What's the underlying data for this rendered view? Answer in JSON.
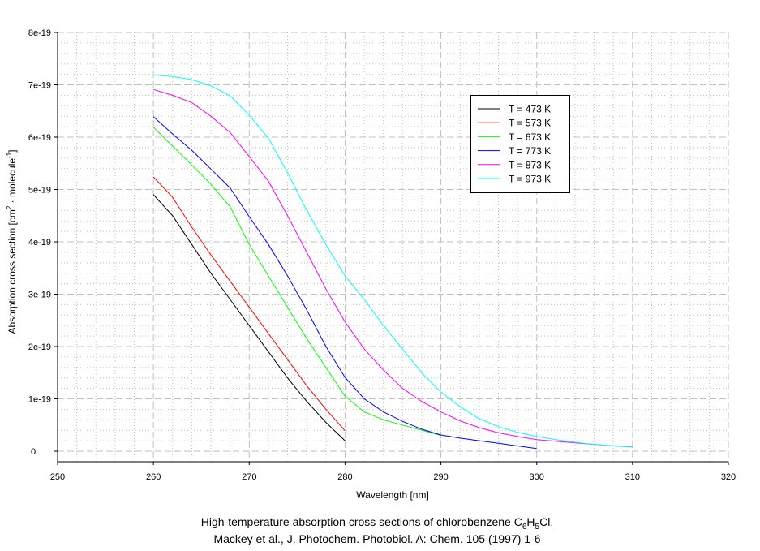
{
  "chart_data": {
    "type": "line",
    "title_line1": [
      "High-temperature absorption cross sections of chlorobenzene C",
      "6",
      "H",
      "5",
      "Cl,"
    ],
    "title_line2": "Mackey et al., J. Photochem. Photobiol. A: Chem. 105 (1997) 1-6",
    "xlabel": "Wavelength [nm]",
    "ylabel": [
      "Absorption cross section  [cm",
      "2",
      " · molecule",
      "-1",
      "]"
    ],
    "xlim": [
      250,
      320
    ],
    "ylim": [
      0,
      8e-19
    ],
    "xticks": [
      "250",
      "260",
      "270",
      "280",
      "290",
      "300",
      "310",
      "320"
    ],
    "yticks": [
      "0",
      "1e-19",
      "2e-19",
      "3e-19",
      "4e-19",
      "5e-19",
      "6e-19",
      "7e-19",
      "8e-19"
    ],
    "grid": true,
    "legend_position": "top-right",
    "y_unit_multiplier": 1e-19,
    "series": [
      {
        "name": "T = 473 K",
        "color": "#000000",
        "x": [
          260,
          262,
          264,
          266,
          268,
          270,
          272,
          274,
          276,
          278,
          280
        ],
        "y": [
          4.9,
          4.5,
          3.95,
          3.4,
          2.9,
          2.4,
          1.9,
          1.4,
          0.95,
          0.55,
          0.2
        ]
      },
      {
        "name": "T = 573 K",
        "color": "#ff0000",
        "x": [
          260,
          262,
          264,
          266,
          268,
          270,
          272,
          274,
          276,
          278,
          280
        ],
        "y": [
          5.24,
          4.85,
          4.28,
          3.75,
          3.25,
          2.75,
          2.25,
          1.75,
          1.25,
          0.8,
          0.39
        ]
      },
      {
        "name": "T = 673 K",
        "color": "#00ff00",
        "x": [
          260,
          262,
          264,
          266,
          268,
          270,
          272,
          274,
          276,
          278,
          280,
          282,
          284,
          286,
          288,
          290
        ],
        "y": [
          6.19,
          5.83,
          5.47,
          5.1,
          4.67,
          3.95,
          3.35,
          2.75,
          2.15,
          1.6,
          1.05,
          0.75,
          0.6,
          0.5,
          0.4,
          0.3
        ]
      },
      {
        "name": "T = 773 K",
        "color": "#0000ff",
        "x": [
          260,
          262,
          264,
          266,
          268,
          270,
          272,
          274,
          276,
          278,
          280,
          282,
          284,
          286,
          288,
          290,
          292,
          294,
          296,
          298,
          300
        ],
        "y": [
          6.39,
          6.06,
          5.75,
          5.39,
          5.03,
          4.48,
          3.95,
          3.35,
          2.7,
          2.0,
          1.41,
          1.0,
          0.75,
          0.57,
          0.42,
          0.31,
          0.25,
          0.2,
          0.15,
          0.1,
          0.05
        ]
      },
      {
        "name": "T = 873 K",
        "color": "#ff00ff",
        "x": [
          260,
          262,
          264,
          266,
          268,
          270,
          272,
          274,
          276,
          278,
          280,
          282,
          284,
          286,
          288,
          290,
          292,
          294,
          296,
          298,
          300,
          302,
          304,
          306,
          308,
          310
        ],
        "y": [
          6.91,
          6.8,
          6.66,
          6.4,
          6.09,
          5.63,
          5.16,
          4.5,
          3.8,
          3.1,
          2.47,
          1.95,
          1.55,
          1.2,
          0.95,
          0.75,
          0.58,
          0.45,
          0.35,
          0.28,
          0.22,
          0.19,
          0.16,
          0.13,
          0.1,
          0.08
        ]
      },
      {
        "name": "T = 973 K",
        "color": "#00ffff",
        "x": [
          260,
          262,
          264,
          266,
          268,
          270,
          272,
          274,
          276,
          278,
          280,
          282,
          284,
          286,
          288,
          290,
          292,
          294,
          296,
          298,
          300,
          302,
          304,
          306,
          308,
          310
        ],
        "y": [
          7.19,
          7.16,
          7.1,
          6.98,
          6.79,
          6.42,
          5.98,
          5.32,
          4.6,
          3.95,
          3.35,
          2.9,
          2.4,
          1.95,
          1.5,
          1.13,
          0.85,
          0.62,
          0.47,
          0.36,
          0.28,
          0.22,
          0.17,
          0.13,
          0.1,
          0.08
        ]
      }
    ]
  }
}
